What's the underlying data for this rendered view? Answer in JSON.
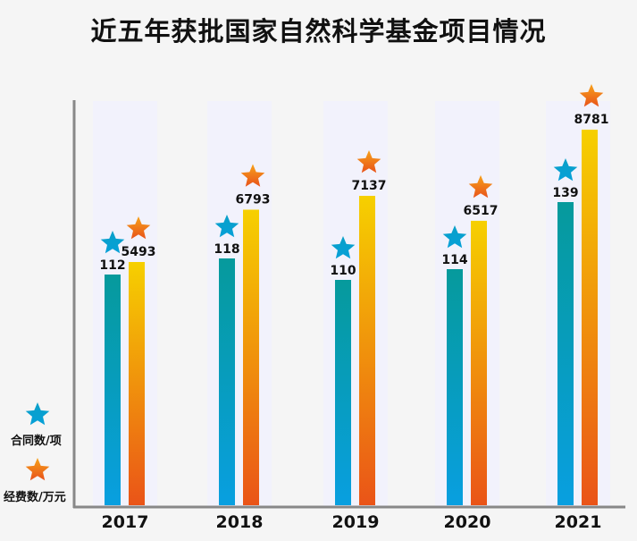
{
  "chart_data": {
    "type": "bar",
    "title": "近五年获批国家自然科学基金项目情况",
    "categories": [
      "2017",
      "2018",
      "2019",
      "2020",
      "2021"
    ],
    "series": [
      {
        "name": "合同数/项",
        "values": [
          112,
          118,
          110,
          114,
          139
        ],
        "color": "#0a9aa8"
      },
      {
        "name": "经费数/万元",
        "values": [
          5493,
          6793,
          7137,
          6517,
          8781
        ],
        "color": "#f3a10c"
      }
    ],
    "legend": "bottom-left",
    "grid": false
  }
}
